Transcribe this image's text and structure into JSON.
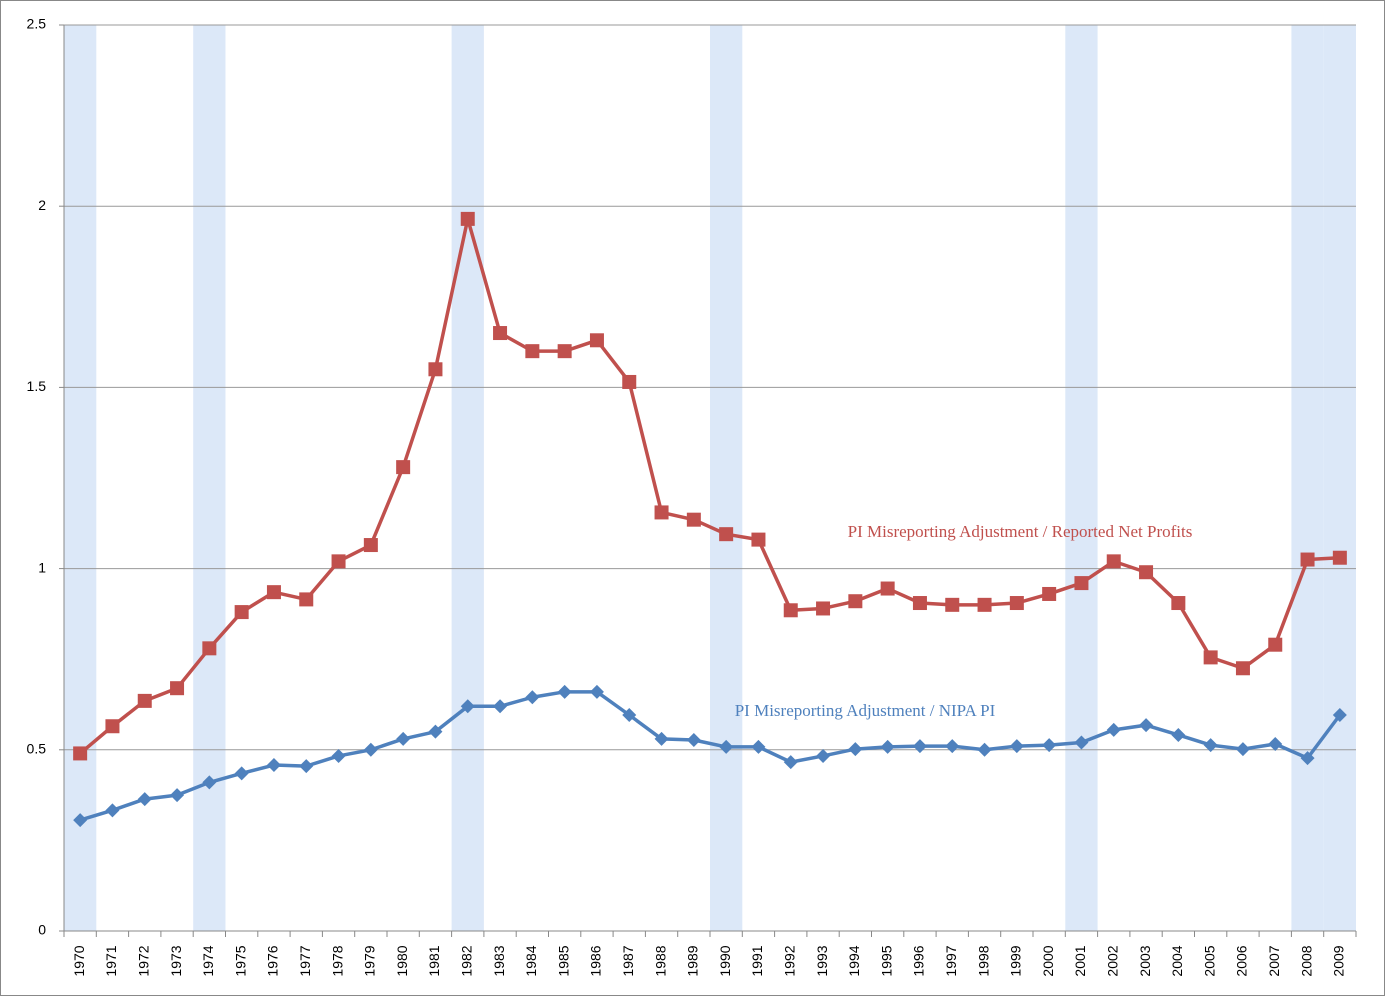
{
  "chart_data": {
    "type": "line",
    "categories": [
      "1970",
      "1971",
      "1972",
      "1973",
      "1974",
      "1975",
      "1976",
      "1977",
      "1978",
      "1979",
      "1980",
      "1981",
      "1982",
      "1983",
      "1984",
      "1985",
      "1986",
      "1987",
      "1988",
      "1989",
      "1990",
      "1991",
      "1992",
      "1993",
      "1994",
      "1995",
      "1996",
      "1997",
      "1998",
      "1999",
      "2000",
      "2001",
      "2002",
      "2003",
      "2004",
      "2005",
      "2006",
      "2007",
      "2008",
      "2009"
    ],
    "series": [
      {
        "name": "PI Misreporting Adjustment / Reported Net Profits",
        "color": "#c0504d",
        "marker": "square",
        "values": [
          0.49,
          0.565,
          0.635,
          0.67,
          0.78,
          0.88,
          0.935,
          0.915,
          1.02,
          1.065,
          1.28,
          1.55,
          1.965,
          1.65,
          1.6,
          1.6,
          1.63,
          1.515,
          1.155,
          1.135,
          1.095,
          1.08,
          0.885,
          0.89,
          0.91,
          0.945,
          0.905,
          0.9,
          0.9,
          0.905,
          0.93,
          0.96,
          1.02,
          0.99,
          0.905,
          0.755,
          0.725,
          0.79,
          1.025,
          1.03
        ]
      },
      {
        "name": "PI Misreporting Adjustment / NIPA PI",
        "color": "#4f81bd",
        "marker": "diamond",
        "values": [
          0.306,
          0.333,
          0.364,
          0.375,
          0.41,
          0.435,
          0.458,
          0.455,
          0.483,
          0.5,
          0.53,
          0.55,
          0.62,
          0.62,
          0.645,
          0.66,
          0.66,
          0.596,
          0.53,
          0.527,
          0.508,
          0.508,
          0.466,
          0.483,
          0.502,
          0.508,
          0.51,
          0.51,
          0.5,
          0.51,
          0.513,
          0.52,
          0.555,
          0.568,
          0.541,
          0.513,
          0.502,
          0.516,
          0.477,
          0.596
        ]
      }
    ],
    "shaded_categories": [
      "1970",
      "1974",
      "1982",
      "1990",
      "2001",
      "2008",
      "2009"
    ],
    "shade_color": "#dce8f8",
    "ylim": [
      0,
      2.5
    ],
    "yticks": [
      0,
      0.5,
      1,
      1.5,
      2,
      2.5
    ],
    "grid": true
  }
}
